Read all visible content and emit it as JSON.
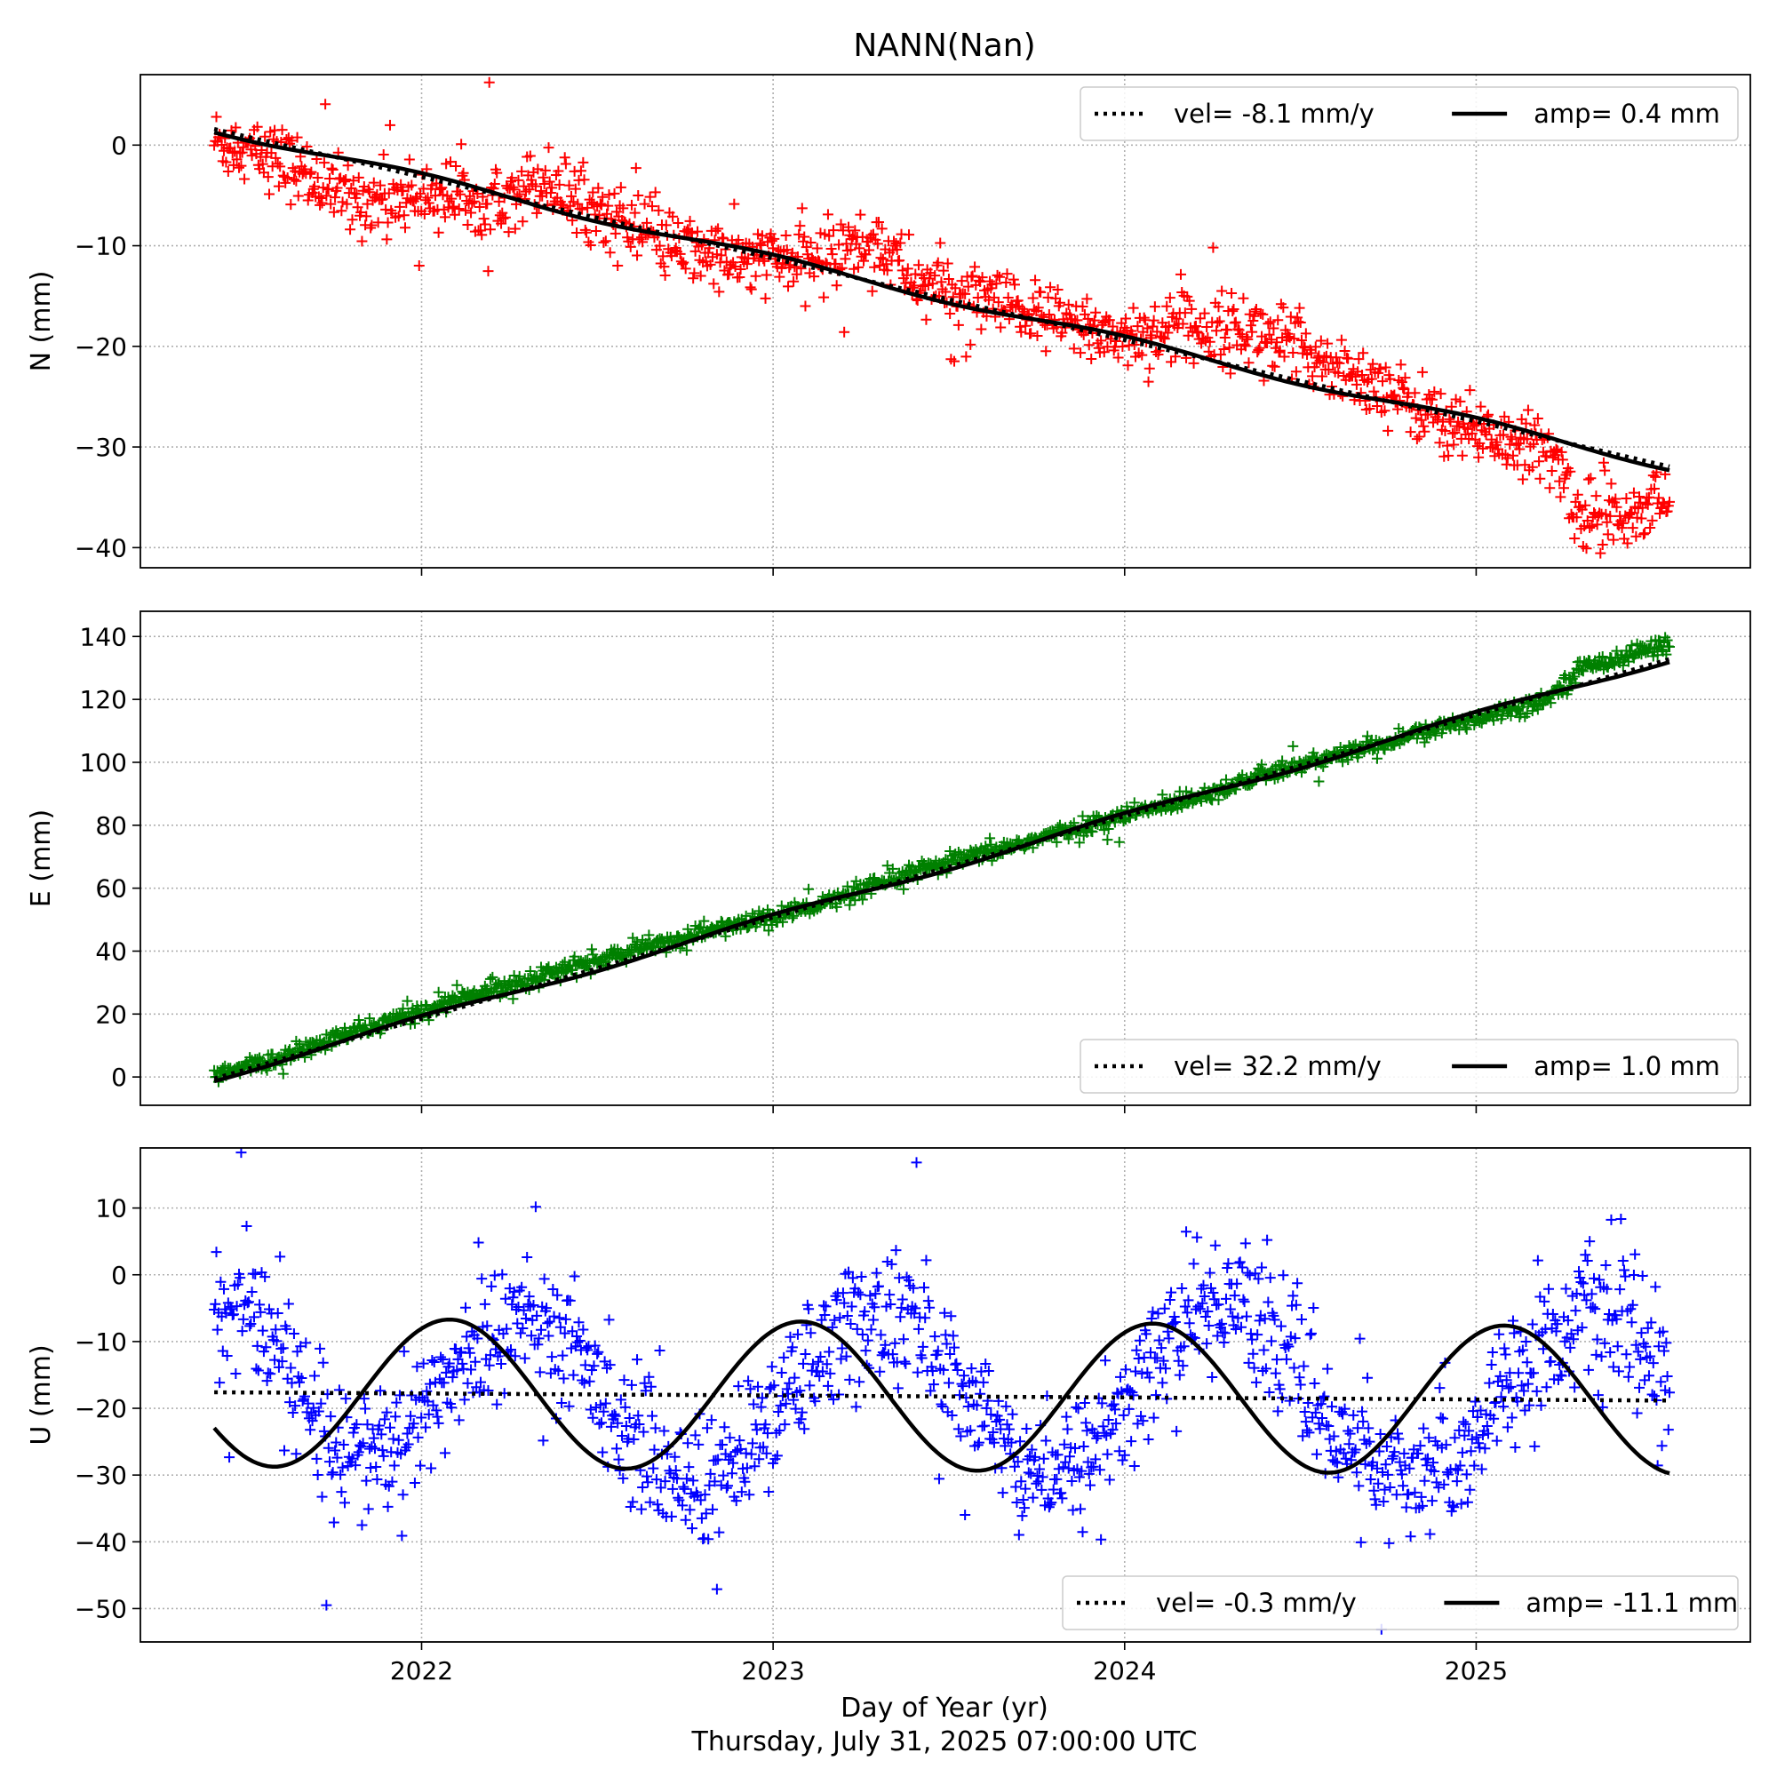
{
  "figure": {
    "title": "NANN(Nan)",
    "xlabel": "Day of Year (yr)",
    "timestamp": "Thursday, July 31, 2025 07:00:00 UTC"
  },
  "chart_data": [
    {
      "type": "scatter",
      "panel": "N",
      "ylabel": "N (mm)",
      "xlim": [
        2021.2,
        2025.78
      ],
      "ylim": [
        -42,
        7
      ],
      "yticks": [
        0,
        -10,
        -20,
        -30,
        -40
      ],
      "xticks": [
        2022,
        2023,
        2024,
        2025
      ],
      "show_xtick_labels": false,
      "grid": true,
      "marker_color": "#ff0000",
      "legend": {
        "placement": "upper right",
        "vel_label": "vel= -8.1 mm/y",
        "amp_label": "amp= 0.4 mm"
      },
      "trend": {
        "start": 2021.41,
        "end": 2025.55,
        "offset": 1.6,
        "rate": -8.1,
        "amplitude": 0.4,
        "phase": 0.0
      },
      "series": [
        {
          "x": [
            2021.41,
            2021.6,
            2021.8,
            2022.0,
            2022.2,
            2022.35,
            2022.5,
            2022.7,
            2022.9,
            2023.1,
            2023.3,
            2023.4,
            2023.6,
            2023.8,
            2024.0,
            2024.2,
            2024.4,
            2024.6,
            2024.8,
            2025.0,
            2025.15,
            2025.22,
            2025.3,
            2025.45,
            2025.55
          ],
          "y": [
            0.5,
            -1.5,
            -5.5,
            -5.0,
            -5.0,
            -3.5,
            -6.5,
            -10.0,
            -11.5,
            -11.5,
            -9.5,
            -13.5,
            -15.5,
            -17.5,
            -19.0,
            -18.0,
            -18.5,
            -22.0,
            -25.5,
            -28.5,
            -30.0,
            -31.0,
            -37.0,
            -36.0,
            -35.5
          ]
        }
      ]
    },
    {
      "type": "scatter",
      "panel": "E",
      "ylabel": "E (mm)",
      "xlim": [
        2021.2,
        2025.78
      ],
      "ylim": [
        -9,
        148
      ],
      "yticks": [
        0,
        20,
        40,
        60,
        80,
        100,
        120,
        140
      ],
      "xticks": [
        2022,
        2023,
        2024,
        2025
      ],
      "show_xtick_labels": false,
      "grid": true,
      "marker_color": "#008000",
      "legend": {
        "placement": "lower right",
        "vel_label": "vel= 32.2 mm/y",
        "amp_label": "amp= 1.0 mm"
      },
      "trend": {
        "start": 2021.41,
        "end": 2025.55,
        "offset": -0.5,
        "rate": 32.2,
        "amplitude": 1.0,
        "phase": 0.0
      },
      "series": [
        {
          "x": [
            2021.41,
            2021.6,
            2021.8,
            2022.0,
            2022.2,
            2022.4,
            2022.6,
            2022.8,
            2023.0,
            2023.2,
            2023.4,
            2023.6,
            2023.8,
            2024.0,
            2024.2,
            2024.4,
            2024.6,
            2024.8,
            2025.0,
            2025.2,
            2025.3,
            2025.55
          ],
          "y": [
            0.5,
            6.0,
            14.0,
            21.0,
            28.0,
            34.0,
            40.0,
            46.0,
            51.0,
            57.0,
            65.0,
            71.0,
            77.0,
            83.0,
            89.0,
            96.0,
            102.0,
            108.0,
            114.0,
            120.0,
            130.0,
            138.0
          ]
        }
      ]
    },
    {
      "type": "scatter",
      "panel": "U",
      "ylabel": "U (mm)",
      "xlim": [
        2021.2,
        2025.78
      ],
      "ylim": [
        -55,
        19
      ],
      "yticks": [
        10,
        0,
        -10,
        -20,
        -30,
        -40,
        -50
      ],
      "xticks": [
        2022,
        2023,
        2024,
        2025
      ],
      "show_xtick_labels": true,
      "xticklabels": [
        "2022",
        "2023",
        "2024",
        "2025"
      ],
      "grid": true,
      "marker_color": "#0000ff",
      "legend": {
        "placement": "lower right",
        "vel_label": "vel= -0.3 mm/y",
        "amp_label": "amp= -11.1 mm"
      },
      "trend": {
        "start": 2021.41,
        "end": 2025.55,
        "offset": -17.6,
        "rate": -0.3,
        "amplitude": -11.1,
        "phase": 0.58
      },
      "series": [
        {
          "x": [
            2021.41,
            2021.5,
            2021.6,
            2021.7,
            2021.8,
            2021.9,
            2022.0,
            2022.1,
            2022.2,
            2022.3,
            2022.4,
            2022.5,
            2022.6,
            2022.7,
            2022.8,
            2022.9,
            2023.0,
            2023.1,
            2023.2,
            2023.3,
            2023.4,
            2023.5,
            2023.6,
            2023.7,
            2023.8,
            2023.9,
            2024.0,
            2024.1,
            2024.2,
            2024.3,
            2024.4,
            2024.5,
            2024.6,
            2024.7,
            2024.8,
            2024.9,
            2025.0,
            2025.1,
            2025.2,
            2025.3,
            2025.4,
            2025.5,
            2025.55
          ],
          "y": [
            -7.0,
            -5.0,
            -12.0,
            -22.0,
            -27.0,
            -26.0,
            -22.0,
            -14.0,
            -9.0,
            -7.0,
            -10.0,
            -16.0,
            -24.0,
            -29.0,
            -32.0,
            -28.0,
            -22.0,
            -14.0,
            -8.0,
            -6.0,
            -8.0,
            -14.0,
            -22.0,
            -27.0,
            -31.0,
            -26.0,
            -20.0,
            -12.0,
            -6.0,
            -3.0,
            -8.0,
            -15.0,
            -24.0,
            -27.0,
            -33.0,
            -28.0,
            -24.0,
            -16.0,
            -10.0,
            -6.0,
            -7.0,
            -12.0,
            -20.0
          ]
        }
      ]
    }
  ]
}
